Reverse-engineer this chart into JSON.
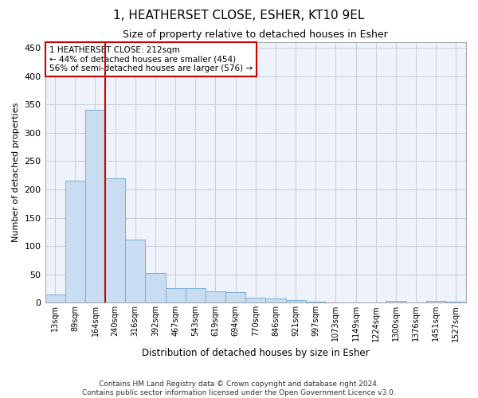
{
  "title": "1, HEATHERSET CLOSE, ESHER, KT10 9EL",
  "subtitle": "Size of property relative to detached houses in Esher",
  "xlabel": "Distribution of detached houses by size in Esher",
  "ylabel": "Number of detached properties",
  "footer1": "Contains HM Land Registry data © Crown copyright and database right 2024.",
  "footer2": "Contains public sector information licensed under the Open Government Licence v3.0.",
  "categories": [
    "13sqm",
    "89sqm",
    "164sqm",
    "240sqm",
    "316sqm",
    "392sqm",
    "467sqm",
    "543sqm",
    "619sqm",
    "694sqm",
    "770sqm",
    "846sqm",
    "921sqm",
    "997sqm",
    "1073sqm",
    "1149sqm",
    "1224sqm",
    "1300sqm",
    "1376sqm",
    "1451sqm",
    "1527sqm"
  ],
  "bar_values": [
    15,
    215,
    340,
    220,
    112,
    53,
    25,
    25,
    20,
    18,
    9,
    7,
    5,
    2,
    1,
    0,
    0,
    3,
    0,
    3,
    2
  ],
  "bar_color": "#c9ddf2",
  "bar_edge_color": "#7aafd4",
  "property_line_x": 2.5,
  "annotation_line1": "1 HEATHERSET CLOSE: 212sqm",
  "annotation_line2": "← 44% of detached houses are smaller (454)",
  "annotation_line3": "56% of semi-detached houses are larger (576) →",
  "annotation_box_edge": "#cc0000",
  "ylim": [
    0,
    460
  ],
  "yticks": [
    0,
    50,
    100,
    150,
    200,
    250,
    300,
    350,
    400,
    450
  ],
  "title_fontsize": 11,
  "subtitle_fontsize": 9,
  "ylabel_fontsize": 8,
  "xlabel_fontsize": 8.5,
  "tick_fontsize": 7,
  "annotation_fontsize": 7.5,
  "footer_fontsize": 6.5,
  "bg_color": "#edf2fb"
}
